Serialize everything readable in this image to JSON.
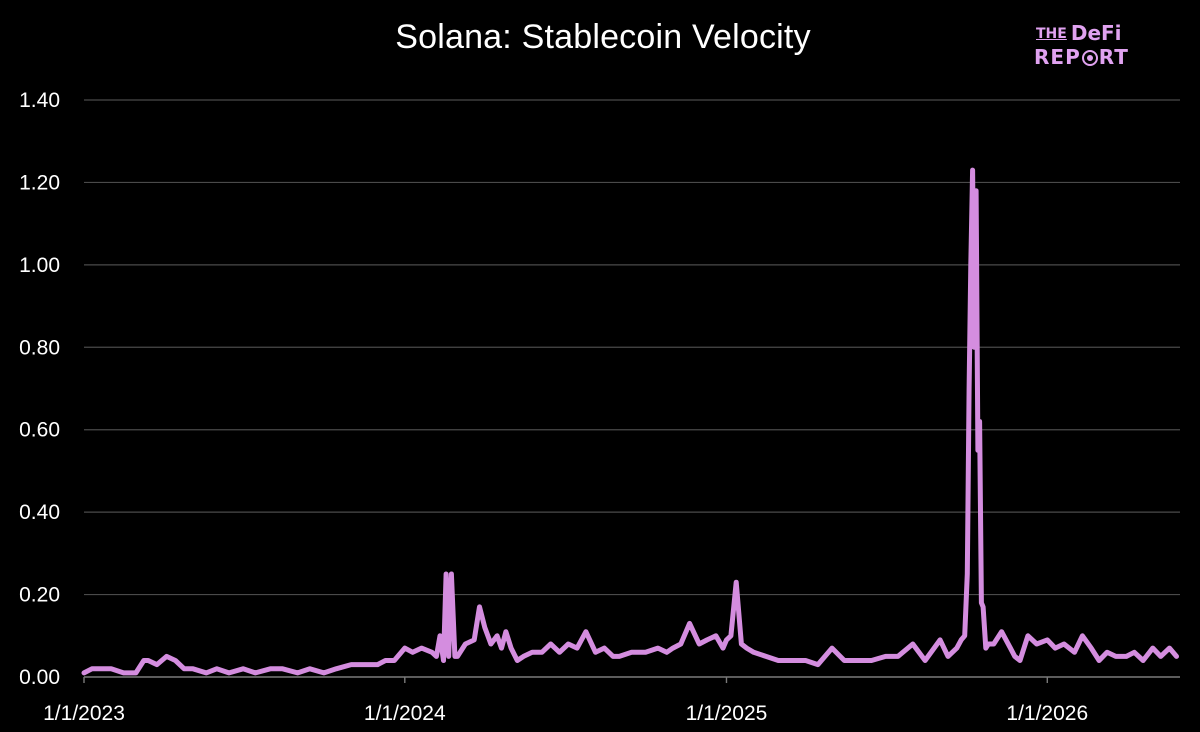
{
  "chart_data": {
    "type": "line",
    "title": "Solana: Stablecoin Velocity",
    "xlabel": "",
    "ylabel": "",
    "x_ticks": [
      "1/1/2023",
      "1/1/2024",
      "1/1/2025",
      "1/1/2026"
    ],
    "y_ticks": [
      "0.00",
      "0.20",
      "0.40",
      "0.60",
      "0.80",
      "1.00",
      "1.20",
      "1.40"
    ],
    "xlim": [
      "2023-01-01",
      "2026-06-01"
    ],
    "ylim": [
      0,
      1.4
    ],
    "grid": true,
    "legend": "none",
    "line_color": "#d48ddf",
    "series": [
      {
        "x": [
          "2023-01-01",
          "2023-01-10",
          "2023-01-20",
          "2023-02-01",
          "2023-02-15",
          "2023-03-01",
          "2023-03-10",
          "2023-03-15",
          "2023-03-25",
          "2023-04-05",
          "2023-04-15",
          "2023-04-25",
          "2023-05-05",
          "2023-05-20",
          "2023-06-01",
          "2023-06-15",
          "2023-07-01",
          "2023-07-15",
          "2023-08-01",
          "2023-08-15",
          "2023-09-01",
          "2023-09-15",
          "2023-10-01",
          "2023-10-15",
          "2023-11-01",
          "2023-11-15",
          "2023-12-01",
          "2023-12-10",
          "2023-12-20",
          "2024-01-01",
          "2024-01-10",
          "2024-01-20",
          "2024-02-01",
          "2024-02-06",
          "2024-02-10",
          "2024-02-14",
          "2024-02-17",
          "2024-02-20",
          "2024-02-23",
          "2024-02-27",
          "2024-03-01",
          "2024-03-10",
          "2024-03-20",
          "2024-03-26",
          "2024-04-01",
          "2024-04-08",
          "2024-04-15",
          "2024-04-20",
          "2024-04-25",
          "2024-05-01",
          "2024-05-08",
          "2024-05-15",
          "2024-05-25",
          "2024-06-05",
          "2024-06-15",
          "2024-06-25",
          "2024-07-05",
          "2024-07-15",
          "2024-07-25",
          "2024-08-05",
          "2024-08-15",
          "2024-08-25",
          "2024-09-01",
          "2024-09-15",
          "2024-10-01",
          "2024-10-15",
          "2024-10-25",
          "2024-11-01",
          "2024-11-10",
          "2024-11-20",
          "2024-12-01",
          "2024-12-10",
          "2024-12-20",
          "2024-12-28",
          "2025-01-01",
          "2025-01-06",
          "2025-01-12",
          "2025-01-18",
          "2025-01-24",
          "2025-02-01",
          "2025-02-15",
          "2025-03-01",
          "2025-03-15",
          "2025-04-01",
          "2025-04-15",
          "2025-05-01",
          "2025-05-15",
          "2025-06-01",
          "2025-06-15",
          "2025-07-01",
          "2025-07-15",
          "2025-08-01",
          "2025-08-15",
          "2025-09-01",
          "2025-09-10",
          "2025-09-20",
          "2025-09-25",
          "2025-09-29",
          "2025-10-02",
          "2025-10-04",
          "2025-10-06",
          "2025-10-08",
          "2025-10-10",
          "2025-10-12",
          "2025-10-14",
          "2025-10-16",
          "2025-10-18",
          "2025-10-20",
          "2025-10-23",
          "2025-10-26",
          "2025-11-01",
          "2025-11-10",
          "2025-11-20",
          "2025-11-25",
          "2025-12-01",
          "2025-12-10",
          "2025-12-20",
          "2026-01-01",
          "2026-01-10",
          "2026-01-20",
          "2026-02-01",
          "2026-02-10",
          "2026-02-20",
          "2026-03-01",
          "2026-03-10",
          "2026-03-20",
          "2026-04-01",
          "2026-04-10",
          "2026-04-20",
          "2026-05-01",
          "2026-05-10",
          "2026-05-20",
          "2026-05-28"
        ],
        "y": [
          0.01,
          0.02,
          0.02,
          0.02,
          0.01,
          0.01,
          0.04,
          0.04,
          0.03,
          0.05,
          0.04,
          0.02,
          0.02,
          0.01,
          0.02,
          0.01,
          0.02,
          0.01,
          0.02,
          0.02,
          0.01,
          0.02,
          0.01,
          0.02,
          0.03,
          0.03,
          0.03,
          0.04,
          0.04,
          0.07,
          0.06,
          0.07,
          0.06,
          0.05,
          0.1,
          0.04,
          0.25,
          0.05,
          0.25,
          0.05,
          0.05,
          0.08,
          0.09,
          0.17,
          0.12,
          0.08,
          0.1,
          0.07,
          0.11,
          0.07,
          0.04,
          0.05,
          0.06,
          0.06,
          0.08,
          0.06,
          0.08,
          0.07,
          0.11,
          0.06,
          0.07,
          0.05,
          0.05,
          0.06,
          0.06,
          0.07,
          0.06,
          0.07,
          0.08,
          0.13,
          0.08,
          0.09,
          0.1,
          0.07,
          0.09,
          0.1,
          0.23,
          0.08,
          0.07,
          0.06,
          0.05,
          0.04,
          0.04,
          0.04,
          0.03,
          0.07,
          0.04,
          0.04,
          0.04,
          0.05,
          0.05,
          0.08,
          0.04,
          0.09,
          0.05,
          0.07,
          0.09,
          0.1,
          0.25,
          0.7,
          1.0,
          1.23,
          0.8,
          1.18,
          0.55,
          0.62,
          0.18,
          0.17,
          0.07,
          0.08,
          0.08,
          0.11,
          0.07,
          0.05,
          0.04,
          0.1,
          0.08,
          0.09,
          0.07,
          0.08,
          0.06,
          0.1,
          0.07,
          0.04,
          0.06,
          0.05,
          0.05,
          0.06,
          0.04,
          0.07,
          0.05,
          0.07,
          0.05
        ]
      }
    ]
  }
}
